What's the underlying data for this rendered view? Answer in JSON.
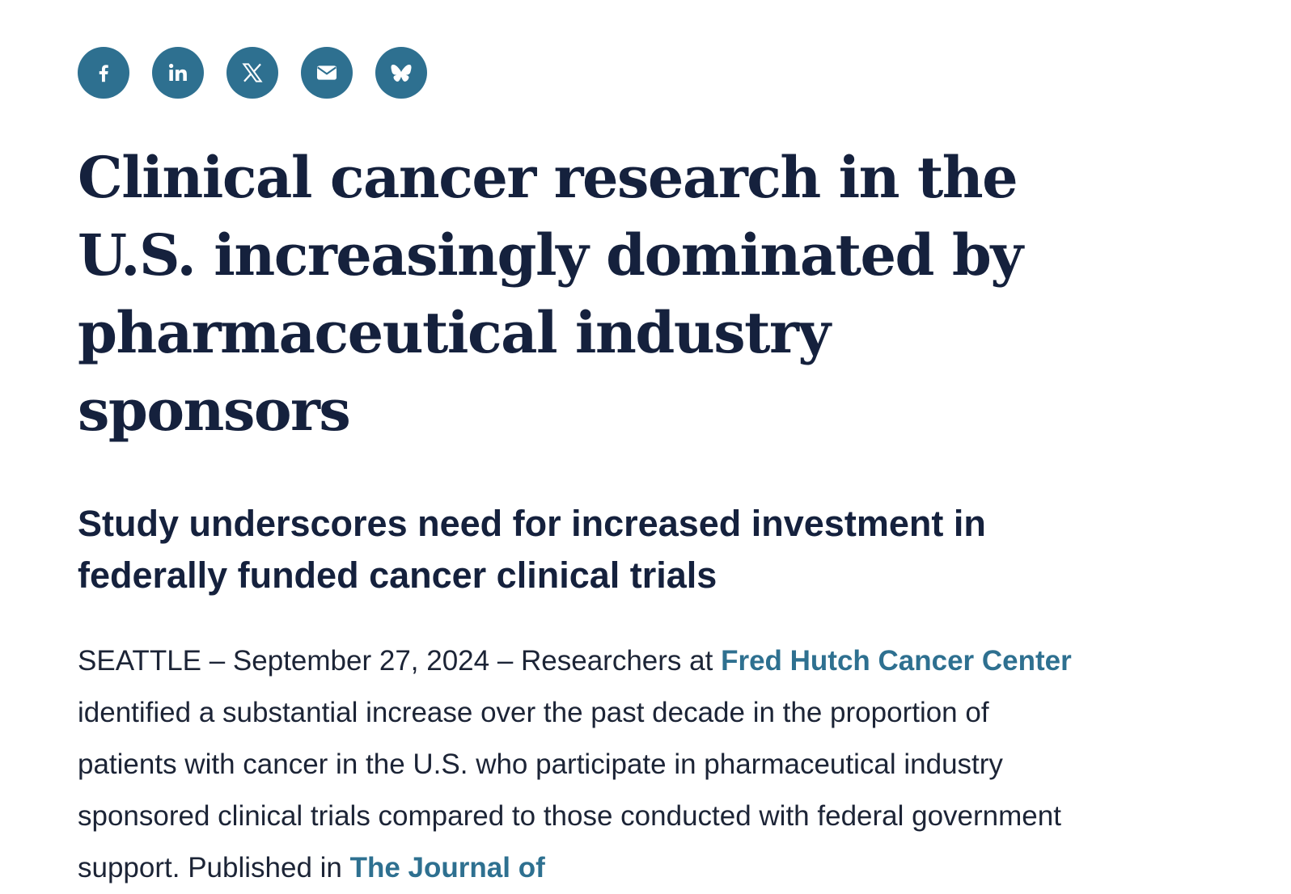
{
  "share": {
    "buttons": [
      {
        "name": "facebook",
        "icon": "facebook-icon"
      },
      {
        "name": "linkedin",
        "icon": "linkedin-icon"
      },
      {
        "name": "x",
        "icon": "x-icon"
      },
      {
        "name": "email",
        "icon": "email-icon"
      },
      {
        "name": "bluesky",
        "icon": "bluesky-icon"
      }
    ],
    "color": "#2e7090"
  },
  "article": {
    "headline": "Clinical cancer research in the U.S. increasingly dominated by pharmaceutical industry sponsors",
    "subheadline": "Study underscores need for increased investment in federally funded cancer clinical trials",
    "dateline": "SEATTLE – September 27, 2024 – Researchers at ",
    "link_fred_hutch": "Fred Hutch Cancer Center",
    "body_after_link": " identified a substantial increase over the past decade in the proportion of patients with cancer in the U.S. who participate in pharmaceutical industry sponsored clinical trials compared to those conducted with federal government support. Published in ",
    "link_journal": "The Journal of"
  },
  "colors": {
    "heading": "#15213d",
    "link": "#2e7090",
    "text": "#1c2436"
  }
}
